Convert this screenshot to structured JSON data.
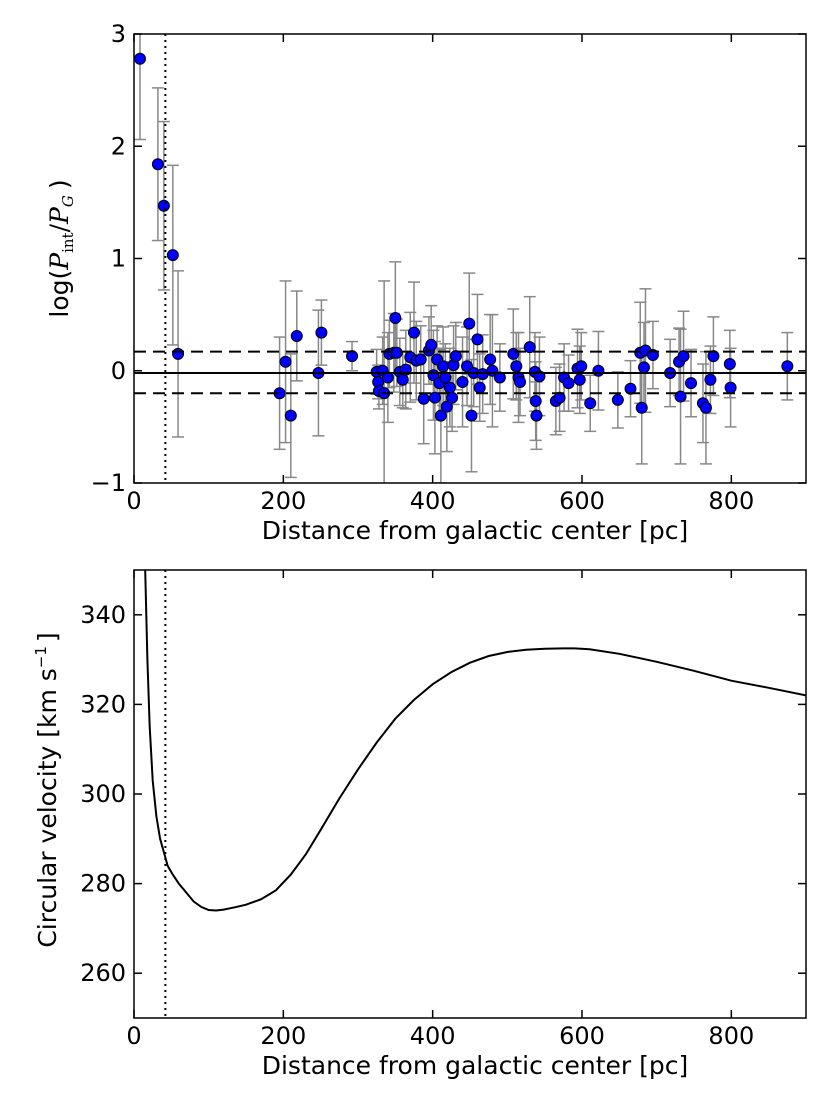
{
  "chart_data": [
    {
      "type": "scatter",
      "xlabel": "Distance from galactic center [pc]",
      "ylabel": "log(P_int/P_G)",
      "ylabel_parts": {
        "prefix": "log(",
        "p1": "P",
        "sub1": "int",
        "slash": "/",
        "p2": "P",
        "sub2": "G",
        "suffix": ")"
      },
      "xlim": [
        0,
        900
      ],
      "ylim": [
        -1,
        3
      ],
      "xticks": [
        0,
        200,
        400,
        600,
        800
      ],
      "yticks": [
        -1,
        0,
        1,
        2,
        3
      ],
      "xtick_labels": [
        "0",
        "200",
        "400",
        "600",
        "800"
      ],
      "ytick_labels": [
        "−1",
        "0",
        "1",
        "2",
        "3"
      ],
      "hlines": [
        {
          "name": "mean",
          "y": -0.02,
          "style": "solid"
        },
        {
          "name": "upper-spread",
          "y": 0.17,
          "style": "dashed"
        },
        {
          "name": "lower-spread",
          "y": -0.2,
          "style": "dashed"
        }
      ],
      "vline": {
        "x": 42,
        "style": "dotted"
      },
      "marker_color": "#0000ff",
      "errorbar_color": "#888888",
      "points": [
        {
          "x": 8,
          "y": 2.78,
          "err": 0.72
        },
        {
          "x": 32,
          "y": 1.84,
          "err": 0.68
        },
        {
          "x": 40,
          "y": 1.47,
          "err": 0.75
        },
        {
          "x": 52,
          "y": 1.03,
          "err": 0.8
        },
        {
          "x": 59,
          "y": 0.15,
          "err": 0.74
        },
        {
          "x": 195,
          "y": -0.2,
          "err": 0.5
        },
        {
          "x": 203,
          "y": 0.08,
          "err": 0.72
        },
        {
          "x": 210,
          "y": -0.4,
          "err": 0.55
        },
        {
          "x": 218,
          "y": 0.31,
          "err": 0.4
        },
        {
          "x": 247,
          "y": -0.02,
          "err": 0.56
        },
        {
          "x": 251,
          "y": 0.34,
          "err": 0.29
        },
        {
          "x": 292,
          "y": 0.13,
          "err": 0.13
        },
        {
          "x": 325,
          "y": -0.01,
          "err": 0.2
        },
        {
          "x": 327,
          "y": -0.1,
          "err": 0.15
        },
        {
          "x": 328,
          "y": -0.18,
          "err": 0.16
        },
        {
          "x": 333,
          "y": 0.0,
          "err": 0.3
        },
        {
          "x": 335,
          "y": -0.2,
          "err": 1.0
        },
        {
          "x": 340,
          "y": -0.06,
          "err": 0.4
        },
        {
          "x": 342,
          "y": 0.15,
          "err": 0.3
        },
        {
          "x": 348,
          "y": 0.16,
          "err": 0.35
        },
        {
          "x": 350,
          "y": 0.47,
          "err": 0.5
        },
        {
          "x": 352,
          "y": 0.16,
          "err": 0.3
        },
        {
          "x": 356,
          "y": -0.01,
          "err": 0.3
        },
        {
          "x": 360,
          "y": -0.08,
          "err": 0.25
        },
        {
          "x": 364,
          "y": 0.01,
          "err": 0.35
        },
        {
          "x": 370,
          "y": 0.12,
          "err": 0.4
        },
        {
          "x": 375,
          "y": 0.34,
          "err": 0.45
        },
        {
          "x": 378,
          "y": 0.09,
          "err": 0.35
        },
        {
          "x": 384,
          "y": 0.1,
          "err": 0.3
        },
        {
          "x": 388,
          "y": -0.25,
          "err": 0.4
        },
        {
          "x": 395,
          "y": 0.18,
          "err": 0.3
        },
        {
          "x": 398,
          "y": 0.23,
          "err": 0.35
        },
        {
          "x": 401,
          "y": -0.04,
          "err": 0.4
        },
        {
          "x": 403,
          "y": -0.24,
          "err": 0.5
        },
        {
          "x": 406,
          "y": 0.1,
          "err": 0.3
        },
        {
          "x": 409,
          "y": -0.11,
          "err": 0.3
        },
        {
          "x": 411,
          "y": -0.4,
          "err": 0.6
        },
        {
          "x": 414,
          "y": 0.04,
          "err": 0.35
        },
        {
          "x": 417,
          "y": -0.06,
          "err": 0.3
        },
        {
          "x": 419,
          "y": -0.32,
          "err": 0.4
        },
        {
          "x": 423,
          "y": -0.15,
          "err": 0.35
        },
        {
          "x": 426,
          "y": -0.24,
          "err": 0.3
        },
        {
          "x": 428,
          "y": 0.05,
          "err": 0.35
        },
        {
          "x": 431,
          "y": 0.13,
          "err": 0.3
        },
        {
          "x": 440,
          "y": -0.1,
          "err": 0.4
        },
        {
          "x": 446,
          "y": 0.04,
          "err": 0.35
        },
        {
          "x": 449,
          "y": 0.42,
          "err": 0.45
        },
        {
          "x": 452,
          "y": -0.4,
          "err": 0.5
        },
        {
          "x": 455,
          "y": -0.02,
          "err": 0.3
        },
        {
          "x": 460,
          "y": 0.28,
          "err": 0.4
        },
        {
          "x": 463,
          "y": -0.15,
          "err": 0.3
        },
        {
          "x": 467,
          "y": -0.03,
          "err": 0.35
        },
        {
          "x": 477,
          "y": 0.1,
          "err": 0.4
        },
        {
          "x": 480,
          "y": 0.0,
          "err": 0.5
        },
        {
          "x": 490,
          "y": -0.06,
          "err": 0.3
        },
        {
          "x": 508,
          "y": 0.15,
          "err": 0.4
        },
        {
          "x": 512,
          "y": 0.04,
          "err": 0.3
        },
        {
          "x": 515,
          "y": -0.06,
          "err": 0.4
        },
        {
          "x": 517,
          "y": -0.1,
          "err": 0.3
        },
        {
          "x": 530,
          "y": 0.21,
          "err": 0.45
        },
        {
          "x": 537,
          "y": -0.01,
          "err": 0.35
        },
        {
          "x": 538,
          "y": -0.27,
          "err": 0.35
        },
        {
          "x": 539,
          "y": -0.4,
          "err": 0.3
        },
        {
          "x": 543,
          "y": -0.05,
          "err": 0.35
        },
        {
          "x": 565,
          "y": -0.27,
          "err": 0.3
        },
        {
          "x": 570,
          "y": -0.24,
          "err": 0.3
        },
        {
          "x": 576,
          "y": -0.06,
          "err": 0.3
        },
        {
          "x": 582,
          "y": -0.11,
          "err": 0.25
        },
        {
          "x": 594,
          "y": 0.02,
          "err": 0.35
        },
        {
          "x": 597,
          "y": -0.08,
          "err": 0.3
        },
        {
          "x": 599,
          "y": 0.04,
          "err": 0.3
        },
        {
          "x": 611,
          "y": -0.29,
          "err": 0.25
        },
        {
          "x": 622,
          "y": 0.0,
          "err": 0.35
        },
        {
          "x": 648,
          "y": -0.26,
          "err": 0.25
        },
        {
          "x": 665,
          "y": -0.16,
          "err": 0.25
        },
        {
          "x": 678,
          "y": 0.16,
          "err": 0.45
        },
        {
          "x": 680,
          "y": -0.33,
          "err": 0.5
        },
        {
          "x": 683,
          "y": 0.03,
          "err": 0.4
        },
        {
          "x": 685,
          "y": 0.18,
          "err": 0.55
        },
        {
          "x": 695,
          "y": 0.14,
          "err": 0.3
        },
        {
          "x": 718,
          "y": -0.02,
          "err": 0.3
        },
        {
          "x": 730,
          "y": 0.08,
          "err": 0.3
        },
        {
          "x": 732,
          "y": -0.23,
          "err": 0.6
        },
        {
          "x": 736,
          "y": 0.13,
          "err": 0.4
        },
        {
          "x": 746,
          "y": -0.11,
          "err": 0.3
        },
        {
          "x": 762,
          "y": -0.29,
          "err": 0.35
        },
        {
          "x": 766,
          "y": -0.33,
          "err": 0.5
        },
        {
          "x": 772,
          "y": -0.08,
          "err": 0.3
        },
        {
          "x": 776,
          "y": 0.13,
          "err": 0.35
        },
        {
          "x": 798,
          "y": 0.06,
          "err": 0.3
        },
        {
          "x": 799,
          "y": -0.15,
          "err": 0.35
        },
        {
          "x": 875,
          "y": 0.04,
          "err": 0.3
        }
      ]
    },
    {
      "type": "line",
      "xlabel": "Distance from galactic center [pc]",
      "ylabel": "Circular velocity [km s⁻¹]",
      "ylabel_parts": {
        "main": "Circular velocity [km s",
        "sup": "−1",
        "suffix": "]"
      },
      "xlim": [
        0,
        900
      ],
      "ylim": [
        250,
        350
      ],
      "xticks": [
        0,
        200,
        400,
        600,
        800
      ],
      "yticks": [
        260,
        280,
        300,
        320,
        340
      ],
      "xtick_labels": [
        "0",
        "200",
        "400",
        "600",
        "800"
      ],
      "ytick_labels": [
        "260",
        "280",
        "300",
        "320",
        "340"
      ],
      "vline": {
        "x": 42,
        "style": "dotted"
      },
      "line_color": "#000000",
      "series": [
        {
          "name": "circular-velocity",
          "x": [
            15,
            18,
            21,
            25,
            30,
            35,
            40,
            45,
            52,
            60,
            70,
            80,
            90,
            100,
            110,
            120,
            135,
            150,
            170,
            190,
            210,
            230,
            250,
            275,
            300,
            325,
            350,
            375,
            400,
            425,
            450,
            475,
            500,
            525,
            550,
            575,
            590,
            610,
            650,
            700,
            750,
            800,
            850,
            900
          ],
          "y": [
            350,
            330,
            315,
            303,
            295,
            290,
            287,
            284,
            282,
            280,
            278,
            276,
            274.8,
            274.1,
            274.0,
            274.2,
            274.7,
            275.3,
            276.5,
            278.5,
            282,
            286.5,
            292,
            299,
            305.5,
            311.5,
            316.8,
            321,
            324.5,
            327.2,
            329.3,
            330.8,
            331.7,
            332.2,
            332.4,
            332.5,
            332.5,
            332.3,
            331.3,
            329.5,
            327.5,
            325.3,
            323.7,
            322
          ]
        }
      ]
    }
  ]
}
